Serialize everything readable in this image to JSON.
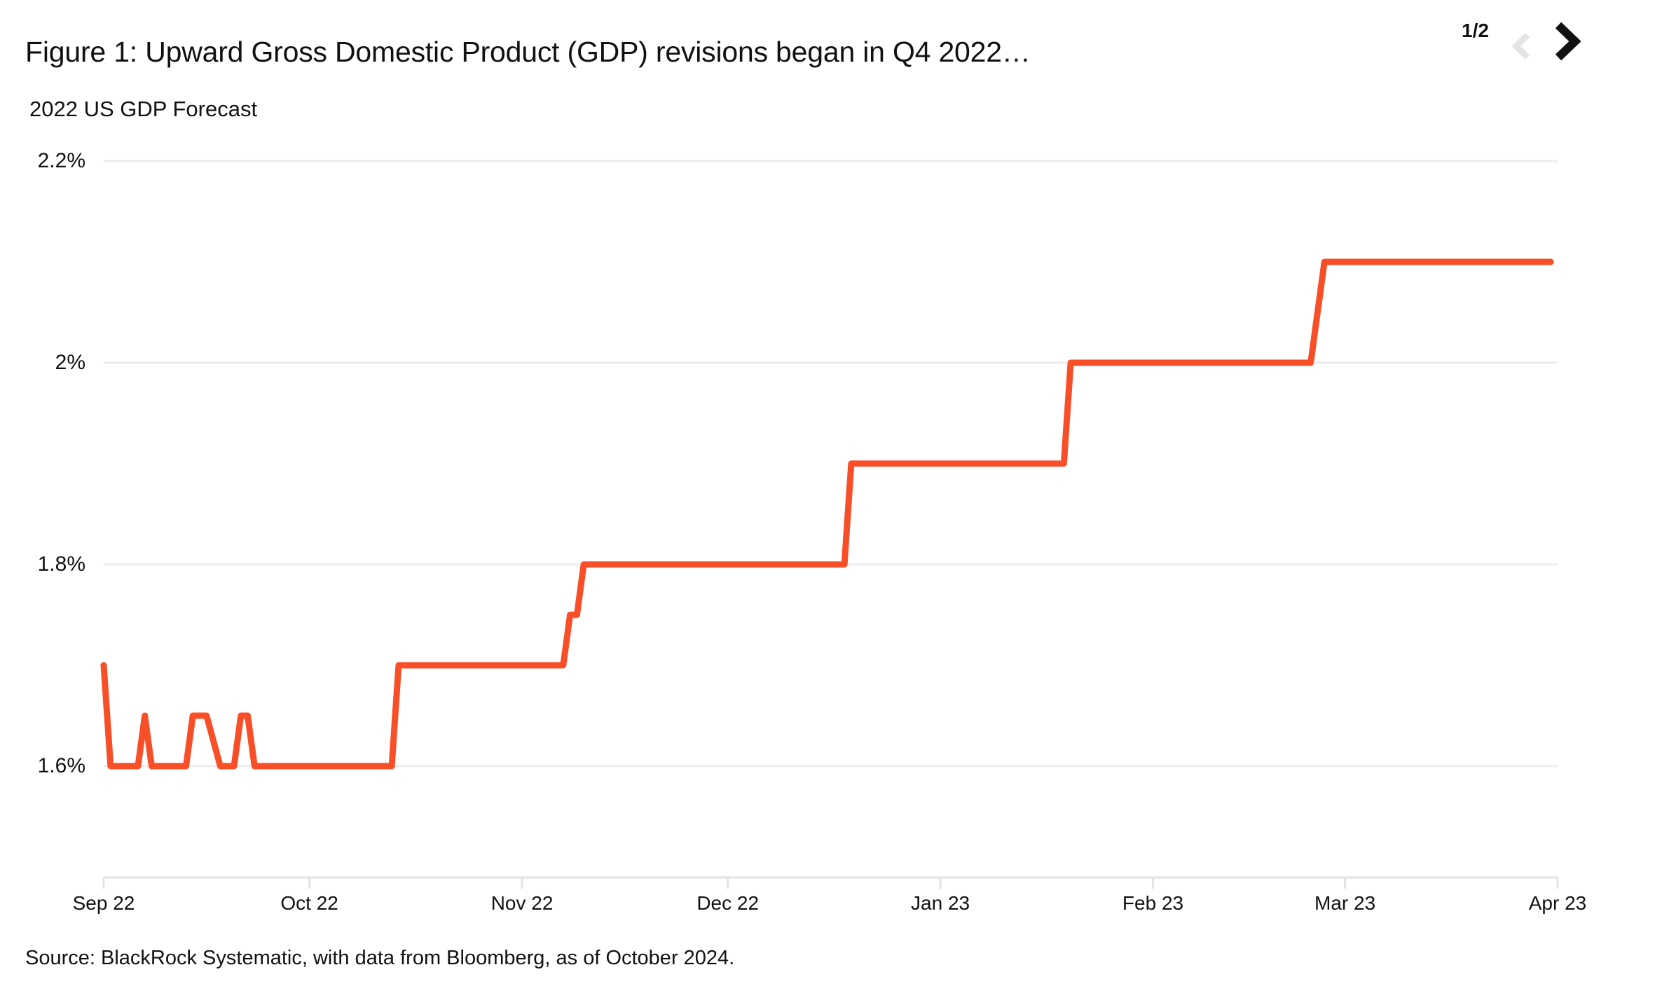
{
  "header": {
    "title": "Figure 1: Upward Gross Domestic Product (GDP) revisions began in Q4 2022…",
    "pagination": "1/2"
  },
  "chart": {
    "subtitle": "2022 US GDP Forecast",
    "source": "Source: BlackRock Systematic, with data from Bloomberg, as of October 2024."
  },
  "icons": {
    "prev": "chevron-left-icon",
    "next": "chevron-right-icon"
  },
  "chart_data": {
    "type": "line",
    "title": "2022 US GDP Forecast",
    "xlabel": "",
    "ylabel": "",
    "y_unit": "%",
    "ylim": [
      1.6,
      2.2
    ],
    "x_start": "2022-09-01",
    "x_end": "2023-04-01",
    "grid": "horizontal",
    "legend": "none",
    "colors": {
      "line": "#F84F28",
      "grid": "#ECECEC",
      "axis": "#E3E3E3",
      "text": "#111111",
      "chevron_next": "#111111",
      "chevron_prev": "#E4E4E4"
    },
    "y_ticks": [
      {
        "label": "2.2%",
        "value": 2.2
      },
      {
        "label": "2%",
        "value": 2.0
      },
      {
        "label": "1.8%",
        "value": 1.8
      },
      {
        "label": "1.6%",
        "value": 1.6
      }
    ],
    "x_ticks": [
      {
        "label": "Sep 22",
        "date": "2022-09-01"
      },
      {
        "label": "Oct 22",
        "date": "2022-10-01"
      },
      {
        "label": "Nov 22",
        "date": "2022-11-01"
      },
      {
        "label": "Dec 22",
        "date": "2022-12-01"
      },
      {
        "label": "Jan 23",
        "date": "2023-01-01"
      },
      {
        "label": "Feb 23",
        "date": "2023-02-01"
      },
      {
        "label": "Mar 23",
        "date": "2023-03-01"
      },
      {
        "label": "Apr 23",
        "date": "2023-04-01"
      }
    ],
    "series": [
      {
        "name": "2022 US GDP Forecast",
        "points": [
          [
            "2022-09-01",
            1.7
          ],
          [
            "2022-09-02",
            1.6
          ],
          [
            "2022-09-06",
            1.6
          ],
          [
            "2022-09-07",
            1.65
          ],
          [
            "2022-09-08",
            1.6
          ],
          [
            "2022-09-13",
            1.6
          ],
          [
            "2022-09-14",
            1.65
          ],
          [
            "2022-09-16",
            1.65
          ],
          [
            "2022-09-18",
            1.6
          ],
          [
            "2022-09-20",
            1.6
          ],
          [
            "2022-09-21",
            1.65
          ],
          [
            "2022-09-22",
            1.65
          ],
          [
            "2022-09-23",
            1.6
          ],
          [
            "2022-10-13",
            1.6
          ],
          [
            "2022-10-14",
            1.7
          ],
          [
            "2022-11-07",
            1.7
          ],
          [
            "2022-11-08",
            1.75
          ],
          [
            "2022-11-09",
            1.75
          ],
          [
            "2022-11-10",
            1.8
          ],
          [
            "2022-12-18",
            1.8
          ],
          [
            "2022-12-19",
            1.9
          ],
          [
            "2023-01-19",
            1.9
          ],
          [
            "2023-01-20",
            2.0
          ],
          [
            "2023-02-24",
            2.0
          ],
          [
            "2023-02-26",
            2.1
          ],
          [
            "2023-03-31",
            2.1
          ]
        ]
      }
    ]
  }
}
